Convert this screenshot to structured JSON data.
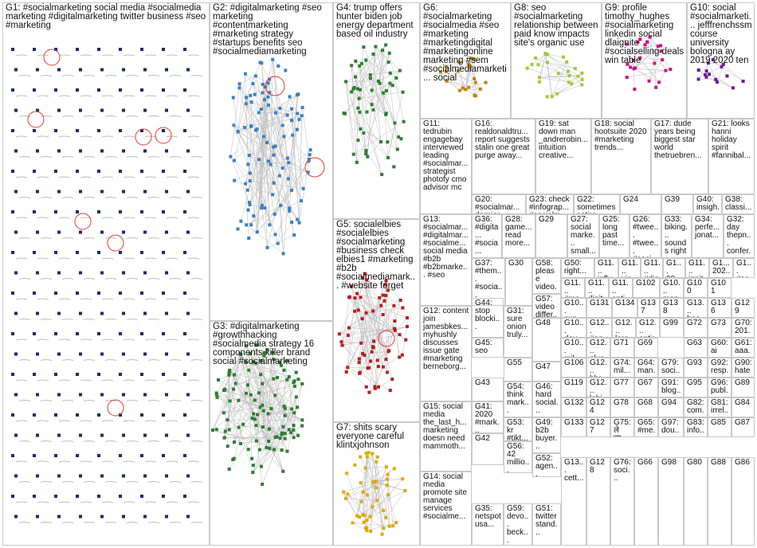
{
  "groups": [
    {
      "id": "G1",
      "label": "G1: #socialmarketing social media #socialmedia marketing #digitalmarketing twitter business #seo #marketing"
    },
    {
      "id": "G2",
      "label": "G2: #digitalmarketing #seo marketing #contentmarketing #marketing strategy #startups benefits seo #socialmediamarketing"
    },
    {
      "id": "G3",
      "label": "G3: #digitalmarketing #growthhacking #socialmedia strategy 16 components killer brand social #socialmarketing"
    },
    {
      "id": "G4",
      "label": "G4: trump offers hunter biden job energy department based oil industry"
    },
    {
      "id": "G5",
      "label": "G5: socialelbies #socialelbies #socialmarketing #business check elbies1 #marketing #b2b #socialmediamark... #website forget"
    },
    {
      "id": "G6",
      "label": "G6: #socialmarketing #socialmedia #seo #marketing #marketingdigital #marketingonline marketing #sem #socialmediamarketi... social"
    },
    {
      "id": "G7",
      "label": "G7: shits scary everyone careful klintxjohnson"
    },
    {
      "id": "G8",
      "label": "G8: seo #socialmarketing relationship between paid know impacts site's organic use"
    },
    {
      "id": "G9",
      "label": "G9: profile timothy_hughes #socialmarketing linkedin social dlaignite #socialselling deals win table"
    },
    {
      "id": "G10",
      "label": "G10: social #socialmarketi... jefffrenchssm course university bologna ay 2019 2020 ten"
    },
    {
      "id": "G11",
      "label": "G11: tedrubin engagebay interviewed leading #socialmar... strategist photofy cmo advisor mc"
    },
    {
      "id": "G12",
      "label": "G12: content join jamesbkes... myhushly discusses issue gate #marketing berneborg..."
    },
    {
      "id": "G13",
      "label": "G13: #socialmar... #digitalmar... #socialme... social media #b2b #b2bmarke... #seo"
    },
    {
      "id": "G14",
      "label": "G14: social media promote site manage services #socialme..."
    },
    {
      "id": "G15",
      "label": "G15: social media the_last_h... marketing doesn need mammoth..."
    },
    {
      "id": "G16",
      "label": "G16: realdonaldtru... report suggests stalin one great purge away..."
    },
    {
      "id": "G17",
      "label": "G17: dude years being biggest star world thetruebren..."
    },
    {
      "id": "G18",
      "label": "G18: social hootsuite 2020 #marketing trends..."
    },
    {
      "id": "G19",
      "label": "G19: sat down man _andrerobin... intuition creative..."
    },
    {
      "id": "G20",
      "label": "G20: #socialmar... dernier..."
    },
    {
      "id": "G21",
      "label": "G21: looks hanni holiday spirit #fannibal..."
    },
    {
      "id": "G22",
      "label": "G22: sometimes satire entitledcy..."
    },
    {
      "id": "G23",
      "label": "G23: check #infograp... #socialm..."
    },
    {
      "id": "G24",
      "label": "G24"
    },
    {
      "id": "G25",
      "label": "G25: long past time..."
    },
    {
      "id": "G26",
      "label": "G26: #twee... #twee... #soci..."
    },
    {
      "id": "G27",
      "label": "G27: social marke... small..."
    },
    {
      "id": "G28",
      "label": "G28: game... read more..."
    },
    {
      "id": "G29",
      "label": "G29"
    },
    {
      "id": "G30",
      "label": "G30"
    },
    {
      "id": "G31",
      "label": "G31: sure onion truly..."
    },
    {
      "id": "G32",
      "label": "G32: day thepn... confer..."
    },
    {
      "id": "G33",
      "label": "G33: biking... sounds right"
    },
    {
      "id": "G34",
      "label": "G34: perfe... jonat..."
    },
    {
      "id": "G35",
      "label": "G35: netspot usa..."
    },
    {
      "id": "G36",
      "label": "G36: #digita... #socia..."
    },
    {
      "id": "G37",
      "label": "G37: #them... #socia..."
    },
    {
      "id": "G38",
      "label": "G38: classi..."
    },
    {
      "id": "G39",
      "label": "G39"
    },
    {
      "id": "G40",
      "label": "G40: insigh... current social..."
    },
    {
      "id": "G41",
      "label": "G41: 2020 #mark..."
    },
    {
      "id": "G42",
      "label": "G42"
    },
    {
      "id": "G43",
      "label": "G43"
    },
    {
      "id": "G44",
      "label": "G44: stop blocki..."
    },
    {
      "id": "G45",
      "label": "G45: seo"
    },
    {
      "id": "G46",
      "label": "G46: hard social..."
    },
    {
      "id": "G47",
      "label": "G47"
    },
    {
      "id": "G48",
      "label": "G48"
    },
    {
      "id": "G49",
      "label": "G49: b2b buyer..."
    },
    {
      "id": "G50",
      "label": "G50: right..."
    },
    {
      "id": "G51",
      "label": "G51: twitter stand..."
    },
    {
      "id": "G52",
      "label": "G52: agen..."
    },
    {
      "id": "G53",
      "label": "G53: kr #tikt..."
    },
    {
      "id": "G54",
      "label": "G54: think mark..."
    },
    {
      "id": "G55",
      "label": "G55"
    },
    {
      "id": "G56",
      "label": "G56: 42 millio..."
    },
    {
      "id": "G57",
      "label": "G57: video differ..."
    },
    {
      "id": "G58",
      "label": "G58: please video..."
    },
    {
      "id": "G59",
      "label": "G59: devo... beck..."
    },
    {
      "id": "G60",
      "label": "G60: ai"
    },
    {
      "id": "G61",
      "label": "G61: aaa..."
    },
    {
      "id": "G62",
      "label": "G62: com..."
    },
    {
      "id": "G63",
      "label": "G63"
    },
    {
      "id": "G64",
      "label": "G64: man..."
    },
    {
      "id": "G65",
      "label": "G65: #me..."
    },
    {
      "id": "G66",
      "label": "G66"
    },
    {
      "id": "G67",
      "label": "G67"
    },
    {
      "id": "G68",
      "label": "G68"
    },
    {
      "id": "G69",
      "label": "G69"
    },
    {
      "id": "G70",
      "label": "G70: 201..."
    },
    {
      "id": "G71",
      "label": "G71"
    },
    {
      "id": "G72",
      "label": "G72"
    },
    {
      "id": "G73",
      "label": "G73"
    },
    {
      "id": "G74",
      "label": "G74: mil..."
    },
    {
      "id": "G75",
      "label": "G75: ले ला..."
    },
    {
      "id": "G76",
      "label": "G76: soci..."
    },
    {
      "id": "G77",
      "label": "G77"
    },
    {
      "id": "G78",
      "label": "G78"
    },
    {
      "id": "G79",
      "label": "G79: soci..."
    },
    {
      "id": "G80",
      "label": "G80"
    },
    {
      "id": "G81",
      "label": "G81: irrel..."
    },
    {
      "id": "G82",
      "label": "G82: com..."
    },
    {
      "id": "G83",
      "label": "G83: info..."
    },
    {
      "id": "G84",
      "label": "G84"
    },
    {
      "id": "G85",
      "label": "G85"
    },
    {
      "id": "G86",
      "label": "G86"
    },
    {
      "id": "G87",
      "label": "G87"
    },
    {
      "id": "G88",
      "label": "G88"
    },
    {
      "id": "G89",
      "label": "G89"
    },
    {
      "id": "G90",
      "label": "G90: hate..."
    },
    {
      "id": "G91",
      "label": "G91: blog..."
    },
    {
      "id": "G92",
      "label": "G92: resp..."
    },
    {
      "id": "G93",
      "label": "G93"
    },
    {
      "id": "G94",
      "label": "G94"
    },
    {
      "id": "G95",
      "label": "G95"
    },
    {
      "id": "G96",
      "label": "G96: publ..."
    },
    {
      "id": "G97",
      "label": "G97: dou..."
    },
    {
      "id": "G98",
      "label": "G98"
    },
    {
      "id": "G99",
      "label": "G99"
    },
    {
      "id": "G100",
      "label": "G100"
    },
    {
      "id": "G101",
      "label": "G101"
    },
    {
      "id": "G102",
      "label": "G102"
    },
    {
      "id": "G103",
      "label": "G10... mil..."
    },
    {
      "id": "G104",
      "label": "G10... dev..."
    },
    {
      "id": "G105",
      "label": "G10... exp..."
    },
    {
      "id": "G106",
      "label": "G106"
    },
    {
      "id": "G107",
      "label": "G1... #so..."
    },
    {
      "id": "G108",
      "label": "G10... man..."
    },
    {
      "id": "G109",
      "label": "G1... 202..."
    },
    {
      "id": "G110",
      "label": "G11... ignit..."
    },
    {
      "id": "G111",
      "label": "G11... #dig..."
    },
    {
      "id": "G112",
      "label": "G11... vie..."
    },
    {
      "id": "G113",
      "label": "G11... influ..."
    },
    {
      "id": "G114",
      "label": "G11... #ma..."
    },
    {
      "id": "G115",
      "label": "G11... digit..."
    },
    {
      "id": "G116",
      "label": "G11... anti..."
    },
    {
      "id": "G117",
      "label": "G1... 99..."
    },
    {
      "id": "G118",
      "label": "G13... boo..."
    },
    {
      "id": "G119",
      "label": "G119"
    },
    {
      "id": "G120",
      "label": "G12... #ag..."
    },
    {
      "id": "G121",
      "label": "G12... larg..."
    },
    {
      "id": "G122",
      "label": "G12... entir..."
    },
    {
      "id": "G123",
      "label": "G12... plus..."
    },
    {
      "id": "G124",
      "label": "G124"
    },
    {
      "id": "G125",
      "label": "G12... lahj..."
    },
    {
      "id": "G126",
      "label": "G12... bbr..."
    },
    {
      "id": "G127",
      "label": "G127"
    },
    {
      "id": "G128",
      "label": "G128"
    },
    {
      "id": "G129",
      "label": "G129"
    },
    {
      "id": "G130",
      "label": "G13... cett..."
    },
    {
      "id": "G131",
      "label": "G131"
    },
    {
      "id": "G132",
      "label": "G132"
    },
    {
      "id": "G133",
      "label": "G133"
    },
    {
      "id": "G134",
      "label": "G134"
    },
    {
      "id": "G136",
      "label": "G136"
    },
    {
      "id": "G137",
      "label": "G137"
    },
    {
      "id": "G138",
      "label": "G138"
    }
  ],
  "colors": {
    "box_border": "#c8c8c8",
    "node_navy": "#1f2a6b",
    "node_blue": "#3b7fc4",
    "node_green": "#2e7d32",
    "node_red": "#b71c1c",
    "node_gold": "#e0a800",
    "edge_gray": "#bdbdbd",
    "halo_red": "#e53935"
  }
}
